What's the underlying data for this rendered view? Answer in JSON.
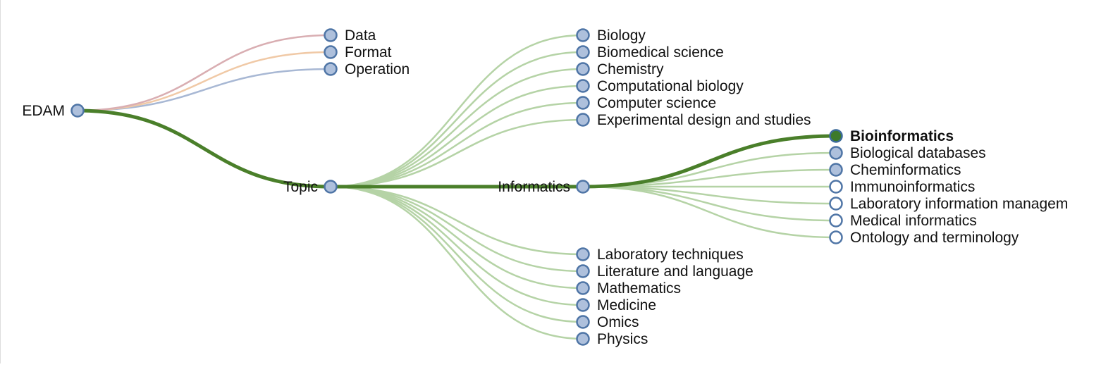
{
  "colors": {
    "link_default": "#b5d3a6",
    "link_active": "#4a7f2a",
    "link_data": "#d9aeb2",
    "link_format": "#f0c9a6",
    "link_operation": "#a8b8d4",
    "node_fill_collapsed": "#aec0dc",
    "node_fill_leaf": "#ffffff",
    "node_stroke": "#4f75a6",
    "node_fill_selected": "#3d7a2a",
    "node_stroke_selected": "#3d6b9a"
  },
  "tree": {
    "root": {
      "label": "EDAM"
    },
    "branches": [
      {
        "label": "Data",
        "link": "data"
      },
      {
        "label": "Format",
        "link": "format"
      },
      {
        "label": "Operation",
        "link": "operation"
      },
      {
        "label": "Topic",
        "link": "active"
      }
    ],
    "topic_children": [
      {
        "label": "Biology",
        "link": "default"
      },
      {
        "label": "Biomedical science",
        "link": "default"
      },
      {
        "label": "Chemistry",
        "link": "default"
      },
      {
        "label": "Computational biology",
        "link": "default"
      },
      {
        "label": "Computer science",
        "link": "default"
      },
      {
        "label": "Experimental design and studies",
        "link": "default"
      },
      {
        "label": "Informatics",
        "link": "active"
      },
      {
        "label": "Laboratory techniques",
        "link": "default"
      },
      {
        "label": "Literature and language",
        "link": "default"
      },
      {
        "label": "Mathematics",
        "link": "default"
      },
      {
        "label": "Medicine",
        "link": "default"
      },
      {
        "label": "Omics",
        "link": "default"
      },
      {
        "label": "Physics",
        "link": "default"
      }
    ],
    "informatics_children": [
      {
        "label": "Bioinformatics",
        "link": "active",
        "state": "selected"
      },
      {
        "label": "Biological databases",
        "link": "default",
        "state": "collapsed"
      },
      {
        "label": "Cheminformatics",
        "link": "default",
        "state": "collapsed"
      },
      {
        "label": "Immunoinformatics",
        "link": "default",
        "state": "leaf"
      },
      {
        "label": "Laboratory information managem",
        "link": "default",
        "state": "leaf"
      },
      {
        "label": "Medical informatics",
        "link": "default",
        "state": "leaf"
      },
      {
        "label": "Ontology and terminology",
        "link": "default",
        "state": "leaf"
      }
    ]
  }
}
